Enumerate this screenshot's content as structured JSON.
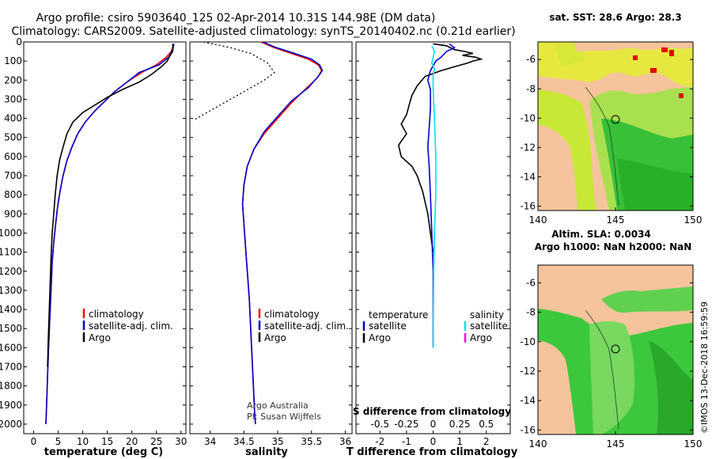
{
  "header": {
    "line1": "Argo profile: csiro 5903640_125 02-Apr-2014 10.31S 144.98E (DM data)",
    "line2": "Climatology: CARS2009. Satellite-adjusted climatology: synTS_20140402.nc (0.21d earlier)"
  },
  "colors": {
    "climatology": "#ff0000",
    "satellite": "#0000cc",
    "argo": "#000000",
    "sal_satellite": "#00e0f0",
    "sal_argo": "#ff00ff",
    "land": "#f5c49c"
  },
  "chart_data": [
    {
      "type": "line",
      "title": "",
      "xlabel": "temperature (deg C)",
      "ylabel": "",
      "xlim": [
        -2,
        31
      ],
      "ylim": [
        2050,
        0
      ],
      "xticks": [
        0,
        5,
        10,
        15,
        20,
        25,
        30
      ],
      "yticks": [
        0,
        100,
        200,
        300,
        400,
        500,
        600,
        700,
        800,
        900,
        1000,
        1100,
        1200,
        1300,
        1400,
        1500,
        1600,
        1700,
        1800,
        1900,
        2000
      ],
      "legend": [
        "climatology",
        "satellite-adj. clim.",
        "Argo"
      ],
      "series": [
        {
          "name": "climatology",
          "color": "#ff0000",
          "points": [
            [
              28.4,
              10
            ],
            [
              28.3,
              30
            ],
            [
              28.0,
              50
            ],
            [
              27.0,
              80
            ],
            [
              25.0,
              120
            ],
            [
              22.0,
              160
            ],
            [
              19.0,
              210
            ],
            [
              16.5,
              260
            ],
            [
              14.5,
              310
            ],
            [
              12.5,
              360
            ],
            [
              10.5,
              420
            ],
            [
              9.0,
              480
            ],
            [
              7.8,
              550
            ],
            [
              6.8,
              620
            ],
            [
              6.0,
              700
            ],
            [
              5.4,
              780
            ],
            [
              4.9,
              860
            ],
            [
              4.5,
              950
            ],
            [
              4.1,
              1050
            ],
            [
              3.8,
              1150
            ],
            [
              3.55,
              1300
            ],
            [
              3.3,
              1450
            ],
            [
              3.05,
              1600
            ],
            [
              2.85,
              1750
            ],
            [
              2.65,
              1900
            ],
            [
              2.5,
              2000
            ]
          ]
        },
        {
          "name": "satellite-adj. clim.",
          "color": "#0000cc",
          "points": [
            [
              28.6,
              10
            ],
            [
              28.4,
              30
            ],
            [
              28.1,
              50
            ],
            [
              27.5,
              80
            ],
            [
              25.5,
              120
            ],
            [
              21.5,
              160
            ],
            [
              19.0,
              210
            ],
            [
              16.5,
              260
            ],
            [
              14.5,
              310
            ],
            [
              12.5,
              360
            ],
            [
              10.5,
              420
            ],
            [
              9.0,
              480
            ],
            [
              7.8,
              550
            ],
            [
              6.8,
              620
            ],
            [
              6.0,
              700
            ],
            [
              5.4,
              780
            ],
            [
              4.9,
              860
            ],
            [
              4.5,
              950
            ],
            [
              4.1,
              1050
            ],
            [
              3.8,
              1150
            ],
            [
              3.55,
              1300
            ],
            [
              3.3,
              1450
            ],
            [
              3.05,
              1600
            ],
            [
              2.85,
              1750
            ],
            [
              2.65,
              1900
            ],
            [
              2.5,
              2000
            ]
          ]
        },
        {
          "name": "Argo",
          "color": "#000000",
          "points": [
            [
              28.3,
              10
            ],
            [
              28.4,
              30
            ],
            [
              28.3,
              50
            ],
            [
              27.8,
              70
            ],
            [
              27.2,
              100
            ],
            [
              26.0,
              130
            ],
            [
              24.0,
              170
            ],
            [
              21.5,
              210
            ],
            [
              18.0,
              250
            ],
            [
              15.0,
              290
            ],
            [
              12.5,
              330
            ],
            [
              10.0,
              370
            ],
            [
              8.0,
              420
            ],
            [
              6.8,
              480
            ],
            [
              6.0,
              550
            ],
            [
              5.3,
              620
            ],
            [
              4.8,
              700
            ],
            [
              4.4,
              800
            ],
            [
              4.1,
              900
            ],
            [
              3.8,
              1000
            ],
            [
              3.6,
              1100
            ],
            [
              3.4,
              1250
            ],
            [
              3.2,
              1400
            ],
            [
              3.0,
              1550
            ],
            [
              2.85,
              1700
            ]
          ]
        }
      ]
    },
    {
      "type": "line",
      "title": "",
      "xlabel": "salinity",
      "ylabel": "",
      "xlim": [
        33.7,
        36.1
      ],
      "ylim": [
        2050,
        0
      ],
      "xticks": [
        34,
        34.5,
        35,
        35.5,
        36
      ],
      "legend": [
        "climatology",
        "satellite-adj. clim.",
        "Argo"
      ],
      "series": [
        {
          "name": "climatology",
          "color": "#ff0000",
          "points": [
            [
              34.75,
              0
            ],
            [
              34.95,
              30
            ],
            [
              35.2,
              60
            ],
            [
              35.45,
              90
            ],
            [
              35.6,
              120
            ],
            [
              35.65,
              150
            ],
            [
              35.58,
              190
            ],
            [
              35.4,
              250
            ],
            [
              35.2,
              320
            ],
            [
              35.0,
              400
            ],
            [
              34.8,
              480
            ],
            [
              34.65,
              560
            ],
            [
              34.55,
              650
            ],
            [
              34.5,
              750
            ],
            [
              34.48,
              850
            ],
            [
              34.5,
              950
            ],
            [
              34.52,
              1050
            ],
            [
              34.54,
              1150
            ],
            [
              34.56,
              1250
            ],
            [
              34.58,
              1350
            ],
            [
              34.6,
              1500
            ],
            [
              34.62,
              1650
            ],
            [
              34.64,
              1800
            ],
            [
              34.66,
              1950
            ],
            [
              34.67,
              2000
            ]
          ]
        },
        {
          "name": "satellite-adj. clim.",
          "color": "#0000cc",
          "points": [
            [
              34.78,
              0
            ],
            [
              34.98,
              30
            ],
            [
              35.25,
              60
            ],
            [
              35.5,
              90
            ],
            [
              35.62,
              120
            ],
            [
              35.66,
              150
            ],
            [
              35.6,
              180
            ],
            [
              35.45,
              240
            ],
            [
              35.2,
              310
            ],
            [
              35.0,
              390
            ],
            [
              34.8,
              470
            ],
            [
              34.65,
              560
            ],
            [
              34.55,
              650
            ],
            [
              34.5,
              750
            ],
            [
              34.48,
              850
            ],
            [
              34.5,
              950
            ],
            [
              34.52,
              1050
            ],
            [
              34.54,
              1150
            ],
            [
              34.56,
              1250
            ],
            [
              34.58,
              1350
            ],
            [
              34.6,
              1500
            ],
            [
              34.62,
              1650
            ],
            [
              34.64,
              1800
            ],
            [
              34.66,
              1950
            ],
            [
              34.67,
              2000
            ]
          ]
        },
        {
          "name": "Argo",
          "color": "#000000",
          "dash": "2,3",
          "points": [
            [
              33.9,
              0
            ],
            [
              34.3,
              30
            ],
            [
              34.6,
              60
            ],
            [
              34.85,
              110
            ],
            [
              34.95,
              160
            ],
            [
              34.8,
              200
            ],
            [
              34.5,
              260
            ],
            [
              34.2,
              320
            ],
            [
              33.9,
              380
            ],
            [
              33.75,
              410
            ]
          ]
        }
      ]
    },
    {
      "type": "line",
      "title": "",
      "xlabel": "T difference from climatology",
      "xlabel2": "S difference from climatology",
      "ylabel": "",
      "xlim": [
        -2.9,
        2.9
      ],
      "xlim_s": [
        -0.725,
        0.725
      ],
      "ylim": [
        2050,
        0
      ],
      "xticks": [
        -2,
        -1,
        0,
        1,
        2
      ],
      "xticks_s": [
        "-0.5",
        "-0.25",
        "0",
        "0.25",
        "0.5"
      ],
      "legend_left": [
        "temperature",
        "satellite",
        "Argo"
      ],
      "legend_right": [
        "salinity",
        "satellite",
        "Argo"
      ],
      "series": [
        {
          "name": "T Argo",
          "color": "#000000",
          "points": [
            [
              0.0,
              10
            ],
            [
              0.5,
              20
            ],
            [
              0.8,
              40
            ],
            [
              1.2,
              50
            ],
            [
              1.5,
              60
            ],
            [
              1.1,
              70
            ],
            [
              1.6,
              80
            ],
            [
              1.8,
              90
            ],
            [
              1.5,
              100
            ],
            [
              1.3,
              110
            ],
            [
              0.8,
              130
            ],
            [
              0.3,
              150
            ],
            [
              -0.3,
              180
            ],
            [
              -0.6,
              230
            ],
            [
              -0.8,
              280
            ],
            [
              -0.9,
              330
            ],
            [
              -1.0,
              380
            ],
            [
              -1.2,
              430
            ],
            [
              -1.0,
              480
            ],
            [
              -1.3,
              540
            ],
            [
              -1.2,
              600
            ],
            [
              -0.8,
              650
            ],
            [
              -0.6,
              700
            ],
            [
              -0.4,
              780
            ],
            [
              -0.2,
              900
            ],
            [
              -0.1,
              1000
            ],
            [
              0.0,
              1100
            ]
          ]
        },
        {
          "name": "T satellite",
          "color": "#0000cc",
          "points": [
            [
              0.6,
              10
            ],
            [
              0.8,
              30
            ],
            [
              0.5,
              50
            ],
            [
              0.3,
              80
            ],
            [
              0.1,
              100
            ],
            [
              -0.1,
              150
            ],
            [
              -0.2,
              200
            ],
            [
              -0.1,
              250
            ],
            [
              -0.1,
              350
            ],
            [
              -0.15,
              450
            ],
            [
              -0.2,
              550
            ],
            [
              -0.15,
              650
            ],
            [
              -0.1,
              800
            ],
            [
              -0.05,
              1000
            ],
            [
              0.0,
              1200
            ],
            [
              0.0,
              1400
            ],
            [
              0.0,
              1600
            ]
          ]
        },
        {
          "name": "S satellite",
          "color": "#00e0f0",
          "points": [
            [
              -0.05,
              20
            ],
            [
              0.05,
              50
            ],
            [
              0.0,
              80
            ],
            [
              -0.05,
              110
            ],
            [
              0.05,
              140
            ],
            [
              0.0,
              180
            ],
            [
              0.0,
              250
            ],
            [
              0.05,
              400
            ],
            [
              0.1,
              600
            ],
            [
              0.1,
              800
            ],
            [
              0.05,
              1000
            ],
            [
              0.02,
              1200
            ],
            [
              0.0,
              1600
            ]
          ]
        }
      ]
    }
  ],
  "maps": [
    {
      "title1": "sat. SST: 28.6 Argo: 28.3",
      "title2": "",
      "xticks": [
        "140",
        "145",
        "150"
      ],
      "yticks": [
        "-6",
        "-8",
        "-10",
        "-12",
        "-14",
        "-16"
      ]
    },
    {
      "title1": "Altim. SLA: 0.0034",
      "title2": "Argo h1000: NaN h2000: NaN",
      "xticks": [
        "140",
        "145",
        "150"
      ],
      "yticks": [
        "-6",
        "-8",
        "-10",
        "-12",
        "-14",
        "-16"
      ]
    }
  ],
  "annotations": {
    "credit1": "Argo Australia",
    "credit2": "PI: Susan Wijffels",
    "imos": "©IMOS 13-Dec-2018 16:59:59"
  }
}
